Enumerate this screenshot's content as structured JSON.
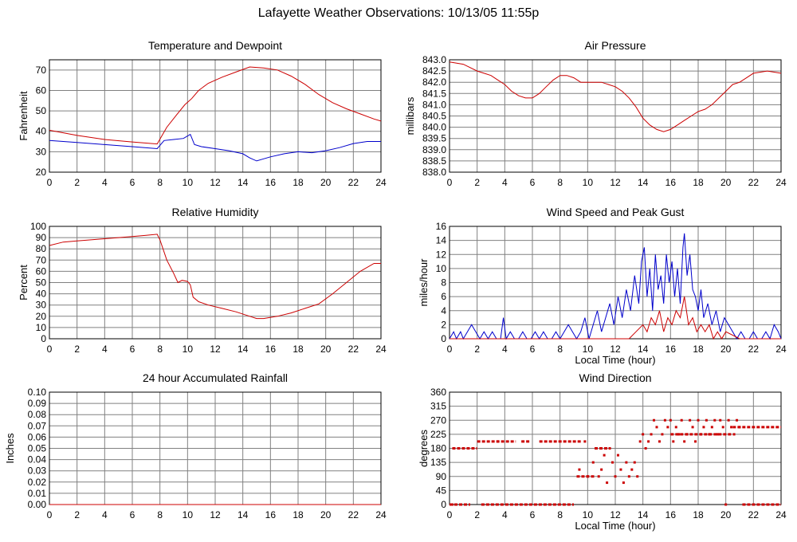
{
  "title": "Lafayette Weather Observations: 10/13/05 11:55p",
  "colors": {
    "red": "#cc0000",
    "blue": "#0000cc",
    "grid": "#808080"
  },
  "chart_data": [
    {
      "id": "temp",
      "type": "line",
      "title": "Temperature and Dewpoint",
      "ylabel": "Fahrenheit",
      "xlabel": "",
      "xlim": [
        0,
        24
      ],
      "ylim": [
        20,
        75
      ],
      "xticks": [
        0,
        2,
        4,
        6,
        8,
        10,
        12,
        14,
        16,
        18,
        20,
        22,
        24
      ],
      "yticks": [
        20,
        30,
        40,
        50,
        60,
        70
      ],
      "ytick_decimals": 0,
      "series": [
        {
          "color": "#cc0000",
          "x": [
            0,
            2,
            4,
            6,
            7.8,
            8.5,
            9.2,
            9.8,
            10.3,
            10.8,
            11.5,
            12.5,
            13.5,
            14.5,
            15.5,
            16.5,
            17.5,
            18.5,
            19.5,
            20.5,
            21.5,
            22.5,
            23.5,
            24
          ],
          "y": [
            40.5,
            38,
            36,
            34.8,
            33.8,
            42,
            48,
            53,
            56,
            60,
            63.5,
            66.5,
            69,
            71.5,
            71,
            70,
            67,
            63,
            58,
            54,
            51,
            48.5,
            46,
            45
          ]
        },
        {
          "color": "#0000cc",
          "x": [
            0,
            2,
            4,
            6,
            7.8,
            8.3,
            9,
            9.7,
            10.2,
            10.5,
            11,
            12,
            13,
            14,
            14.5,
            15,
            15.5,
            16,
            17,
            18,
            19,
            20,
            21,
            22,
            23,
            24
          ],
          "y": [
            35.5,
            34.5,
            33.5,
            32.5,
            31.5,
            35.5,
            36,
            36.5,
            38.5,
            33.5,
            32.5,
            31.5,
            30.5,
            29,
            27,
            25.5,
            26.5,
            27.5,
            29,
            30,
            29.5,
            30.5,
            32,
            34,
            35,
            35
          ]
        }
      ]
    },
    {
      "id": "pressure",
      "type": "line",
      "title": "Air Pressure",
      "ylabel": "millibars",
      "xlabel": "",
      "xlim": [
        0,
        24
      ],
      "ylim": [
        838.0,
        843.0
      ],
      "xticks": [
        0,
        2,
        4,
        6,
        8,
        10,
        12,
        14,
        16,
        18,
        20,
        22,
        24
      ],
      "yticks": [
        838.0,
        838.5,
        839.0,
        839.5,
        840.0,
        840.5,
        841.0,
        841.5,
        842.0,
        842.5,
        843.0
      ],
      "ytick_decimals": 1,
      "series": [
        {
          "color": "#cc0000",
          "x": [
            0,
            1,
            2,
            2.5,
            3,
            3.5,
            4,
            4.5,
            5,
            5.5,
            6,
            6.5,
            7,
            7.5,
            8,
            8.5,
            9,
            9.5,
            10,
            11,
            12,
            12.5,
            13,
            13.5,
            14,
            14.5,
            15,
            15.5,
            16,
            16.5,
            17,
            17.5,
            18,
            18.5,
            19,
            19.5,
            20,
            20.5,
            21,
            21.5,
            22,
            23,
            24
          ],
          "y": [
            842.9,
            842.8,
            842.5,
            842.4,
            842.3,
            842.1,
            841.9,
            841.6,
            841.4,
            841.3,
            841.3,
            841.5,
            841.8,
            842.1,
            842.3,
            842.3,
            842.2,
            842.0,
            842.0,
            842.0,
            841.8,
            841.6,
            841.3,
            840.9,
            840.4,
            840.1,
            839.9,
            839.8,
            839.9,
            840.1,
            840.3,
            840.5,
            840.7,
            840.8,
            841.0,
            841.3,
            841.6,
            841.9,
            842.0,
            842.2,
            842.4,
            842.5,
            842.4
          ]
        }
      ]
    },
    {
      "id": "humidity",
      "type": "line",
      "title": "Relative Humidity",
      "ylabel": "Percent",
      "xlabel": "",
      "xlim": [
        0,
        24
      ],
      "ylim": [
        0,
        100
      ],
      "xticks": [
        0,
        2,
        4,
        6,
        8,
        10,
        12,
        14,
        16,
        18,
        20,
        22,
        24
      ],
      "yticks": [
        0,
        10,
        20,
        30,
        40,
        50,
        60,
        70,
        80,
        90,
        100
      ],
      "ytick_decimals": 0,
      "series": [
        {
          "color": "#cc0000",
          "x": [
            0,
            1,
            2,
            3,
            4,
            5,
            6,
            7,
            7.8,
            8,
            8.5,
            9,
            9.3,
            9.6,
            10,
            10.2,
            10.4,
            10.8,
            11.5,
            12.5,
            13.5,
            14.5,
            15,
            15.5,
            16.5,
            17.5,
            18.5,
            19.5,
            20.5,
            21.5,
            22.5,
            23.5,
            24
          ],
          "y": [
            83,
            86,
            87,
            88,
            89,
            90,
            91,
            92,
            93,
            88,
            70,
            58,
            50,
            52,
            51,
            48,
            37,
            33,
            30,
            27,
            24,
            20,
            18,
            18,
            20,
            23,
            27,
            31,
            40,
            50,
            60,
            67,
            67
          ]
        }
      ]
    },
    {
      "id": "wind-speed",
      "type": "line",
      "title": "Wind Speed and Peak Gust",
      "ylabel": "miles/hour",
      "xlabel": "Local Time (hour)",
      "xlim": [
        0,
        24
      ],
      "ylim": [
        0,
        16
      ],
      "xticks": [
        0,
        2,
        4,
        6,
        8,
        10,
        12,
        14,
        16,
        18,
        20,
        22,
        24
      ],
      "yticks": [
        0,
        2,
        4,
        6,
        8,
        10,
        12,
        14,
        16
      ],
      "ytick_decimals": 0,
      "series": [
        {
          "color": "#0000cc",
          "x": [
            0,
            0.3,
            0.5,
            0.8,
            1,
            1.3,
            1.6,
            1.9,
            2.2,
            2.5,
            2.8,
            3.1,
            3.4,
            3.7,
            3.9,
            4.1,
            4.4,
            4.7,
            5.0,
            5.3,
            5.6,
            5.9,
            6.2,
            6.5,
            6.8,
            7.1,
            7.4,
            7.7,
            8.0,
            8.3,
            8.6,
            8.9,
            9.2,
            9.5,
            9.8,
            10.1,
            10.4,
            10.7,
            11.0,
            11.3,
            11.6,
            11.9,
            12.2,
            12.5,
            12.8,
            13.1,
            13.4,
            13.7,
            13.9,
            14.1,
            14.3,
            14.5,
            14.7,
            14.9,
            15.1,
            15.3,
            15.5,
            15.7,
            15.9,
            16.1,
            16.3,
            16.5,
            16.7,
            16.9,
            17.0,
            17.2,
            17.4,
            17.6,
            17.8,
            18.0,
            18.2,
            18.4,
            18.7,
            19.0,
            19.3,
            19.6,
            19.9,
            20.2,
            20.5,
            20.8,
            21.1,
            21.4,
            21.7,
            22.0,
            22.3,
            22.6,
            22.9,
            23.2,
            23.5,
            23.8,
            24
          ],
          "y": [
            0,
            1,
            0,
            1,
            0,
            1,
            2,
            1,
            0,
            1,
            0,
            1,
            0,
            0,
            3,
            0,
            1,
            0,
            0,
            1,
            0,
            0,
            1,
            0,
            1,
            0,
            0,
            1,
            0,
            1,
            2,
            1,
            0,
            1,
            3,
            0,
            2,
            4,
            1,
            3,
            5,
            2,
            6,
            3,
            7,
            4,
            9,
            5,
            11,
            13,
            6,
            10,
            4,
            12,
            7,
            9,
            5,
            12,
            8,
            11,
            6,
            10,
            5,
            13,
            15,
            9,
            12,
            7,
            6,
            4,
            7,
            3,
            5,
            2,
            4,
            1,
            3,
            2,
            1,
            0,
            1,
            0,
            0,
            1,
            0,
            0,
            1,
            0,
            2,
            1,
            0
          ]
        },
        {
          "color": "#cc0000",
          "x": [
            0,
            13.0,
            13.5,
            14.0,
            14.3,
            14.6,
            14.9,
            15.2,
            15.5,
            15.8,
            16.1,
            16.4,
            16.7,
            17.0,
            17.3,
            17.6,
            17.9,
            18.2,
            18.5,
            18.8,
            19.1,
            19.4,
            19.7,
            20.0,
            21.0,
            24
          ],
          "y": [
            0,
            0,
            1,
            2,
            1,
            3,
            2,
            4,
            1,
            3,
            2,
            4,
            3,
            6,
            2,
            3,
            1,
            2,
            1,
            2,
            0,
            1,
            0,
            1,
            0,
            0
          ]
        }
      ]
    },
    {
      "id": "rainfall",
      "type": "line",
      "title": "24 hour Accumulated Rainfall",
      "ylabel": "Inches",
      "xlabel": "",
      "xlim": [
        0,
        24
      ],
      "ylim": [
        0,
        0.1
      ],
      "xticks": [
        0,
        2,
        4,
        6,
        8,
        10,
        12,
        14,
        16,
        18,
        20,
        22,
        24
      ],
      "yticks": [
        0.0,
        0.01,
        0.02,
        0.03,
        0.04,
        0.05,
        0.06,
        0.07,
        0.08,
        0.09,
        0.1
      ],
      "ytick_decimals": 2,
      "series": [
        {
          "color": "#cc0000",
          "x": [
            0,
            24
          ],
          "y": [
            0,
            0
          ]
        }
      ]
    },
    {
      "id": "wind-direction",
      "type": "scatter",
      "title": "Wind Direction",
      "ylabel": "degrees",
      "xlabel": "Local Time (hour)",
      "xlim": [
        0,
        24
      ],
      "ylim": [
        0,
        360
      ],
      "xticks": [
        0,
        2,
        4,
        6,
        8,
        10,
        12,
        14,
        16,
        18,
        20,
        22,
        24
      ],
      "yticks": [
        0,
        45,
        90,
        135,
        180,
        225,
        270,
        315,
        360
      ],
      "ytick_decimals": 0,
      "series": [
        {
          "color": "#cc0000",
          "segments": [
            [
              0.0,
              1.5,
              0
            ],
            [
              0.2,
              2.0,
              180
            ],
            [
              2.0,
              4.8,
              202
            ],
            [
              2.3,
              9.0,
              0
            ],
            [
              5.2,
              5.8,
              202
            ],
            [
              6.5,
              9.6,
              202
            ],
            [
              9.2,
              10.5,
              90
            ],
            [
              10.5,
              11.5,
              180
            ],
            [
              16.0,
              20.5,
              225
            ],
            [
              20.5,
              24.0,
              248
            ],
            [
              21.2,
              24.0,
              0
            ]
          ],
          "points": [
            [
              0.2,
              0
            ],
            [
              3.5,
              202
            ],
            [
              9.4,
              112
            ],
            [
              9.8,
              202
            ],
            [
              10.0,
              90
            ],
            [
              10.4,
              135
            ],
            [
              10.8,
              90
            ],
            [
              11.0,
              112
            ],
            [
              11.2,
              158
            ],
            [
              11.4,
              70
            ],
            [
              11.6,
              180
            ],
            [
              11.8,
              135
            ],
            [
              12.0,
              90
            ],
            [
              12.2,
              158
            ],
            [
              12.4,
              112
            ],
            [
              12.6,
              70
            ],
            [
              12.8,
              135
            ],
            [
              13.0,
              90
            ],
            [
              13.2,
              112
            ],
            [
              13.4,
              135
            ],
            [
              13.6,
              90
            ],
            [
              13.8,
              202
            ],
            [
              14.0,
              225
            ],
            [
              14.2,
              180
            ],
            [
              14.4,
              202
            ],
            [
              14.6,
              225
            ],
            [
              14.8,
              270
            ],
            [
              15.0,
              248
            ],
            [
              15.2,
              202
            ],
            [
              15.4,
              225
            ],
            [
              15.6,
              270
            ],
            [
              15.8,
              248
            ],
            [
              16.0,
              270
            ],
            [
              16.2,
              202
            ],
            [
              16.4,
              248
            ],
            [
              16.6,
              225
            ],
            [
              16.8,
              270
            ],
            [
              17.0,
              202
            ],
            [
              17.2,
              225
            ],
            [
              17.4,
              270
            ],
            [
              17.6,
              248
            ],
            [
              17.8,
              202
            ],
            [
              18.0,
              270
            ],
            [
              18.2,
              225
            ],
            [
              18.4,
              248
            ],
            [
              18.6,
              270
            ],
            [
              18.8,
              225
            ],
            [
              19.0,
              248
            ],
            [
              19.2,
              270
            ],
            [
              19.4,
              225
            ],
            [
              19.6,
              270
            ],
            [
              19.8,
              248
            ],
            [
              20.0,
              0
            ],
            [
              20.2,
              270
            ],
            [
              20.4,
              248
            ],
            [
              20.6,
              225
            ],
            [
              20.8,
              270
            ],
            [
              21.0,
              248
            ]
          ]
        }
      ]
    }
  ]
}
